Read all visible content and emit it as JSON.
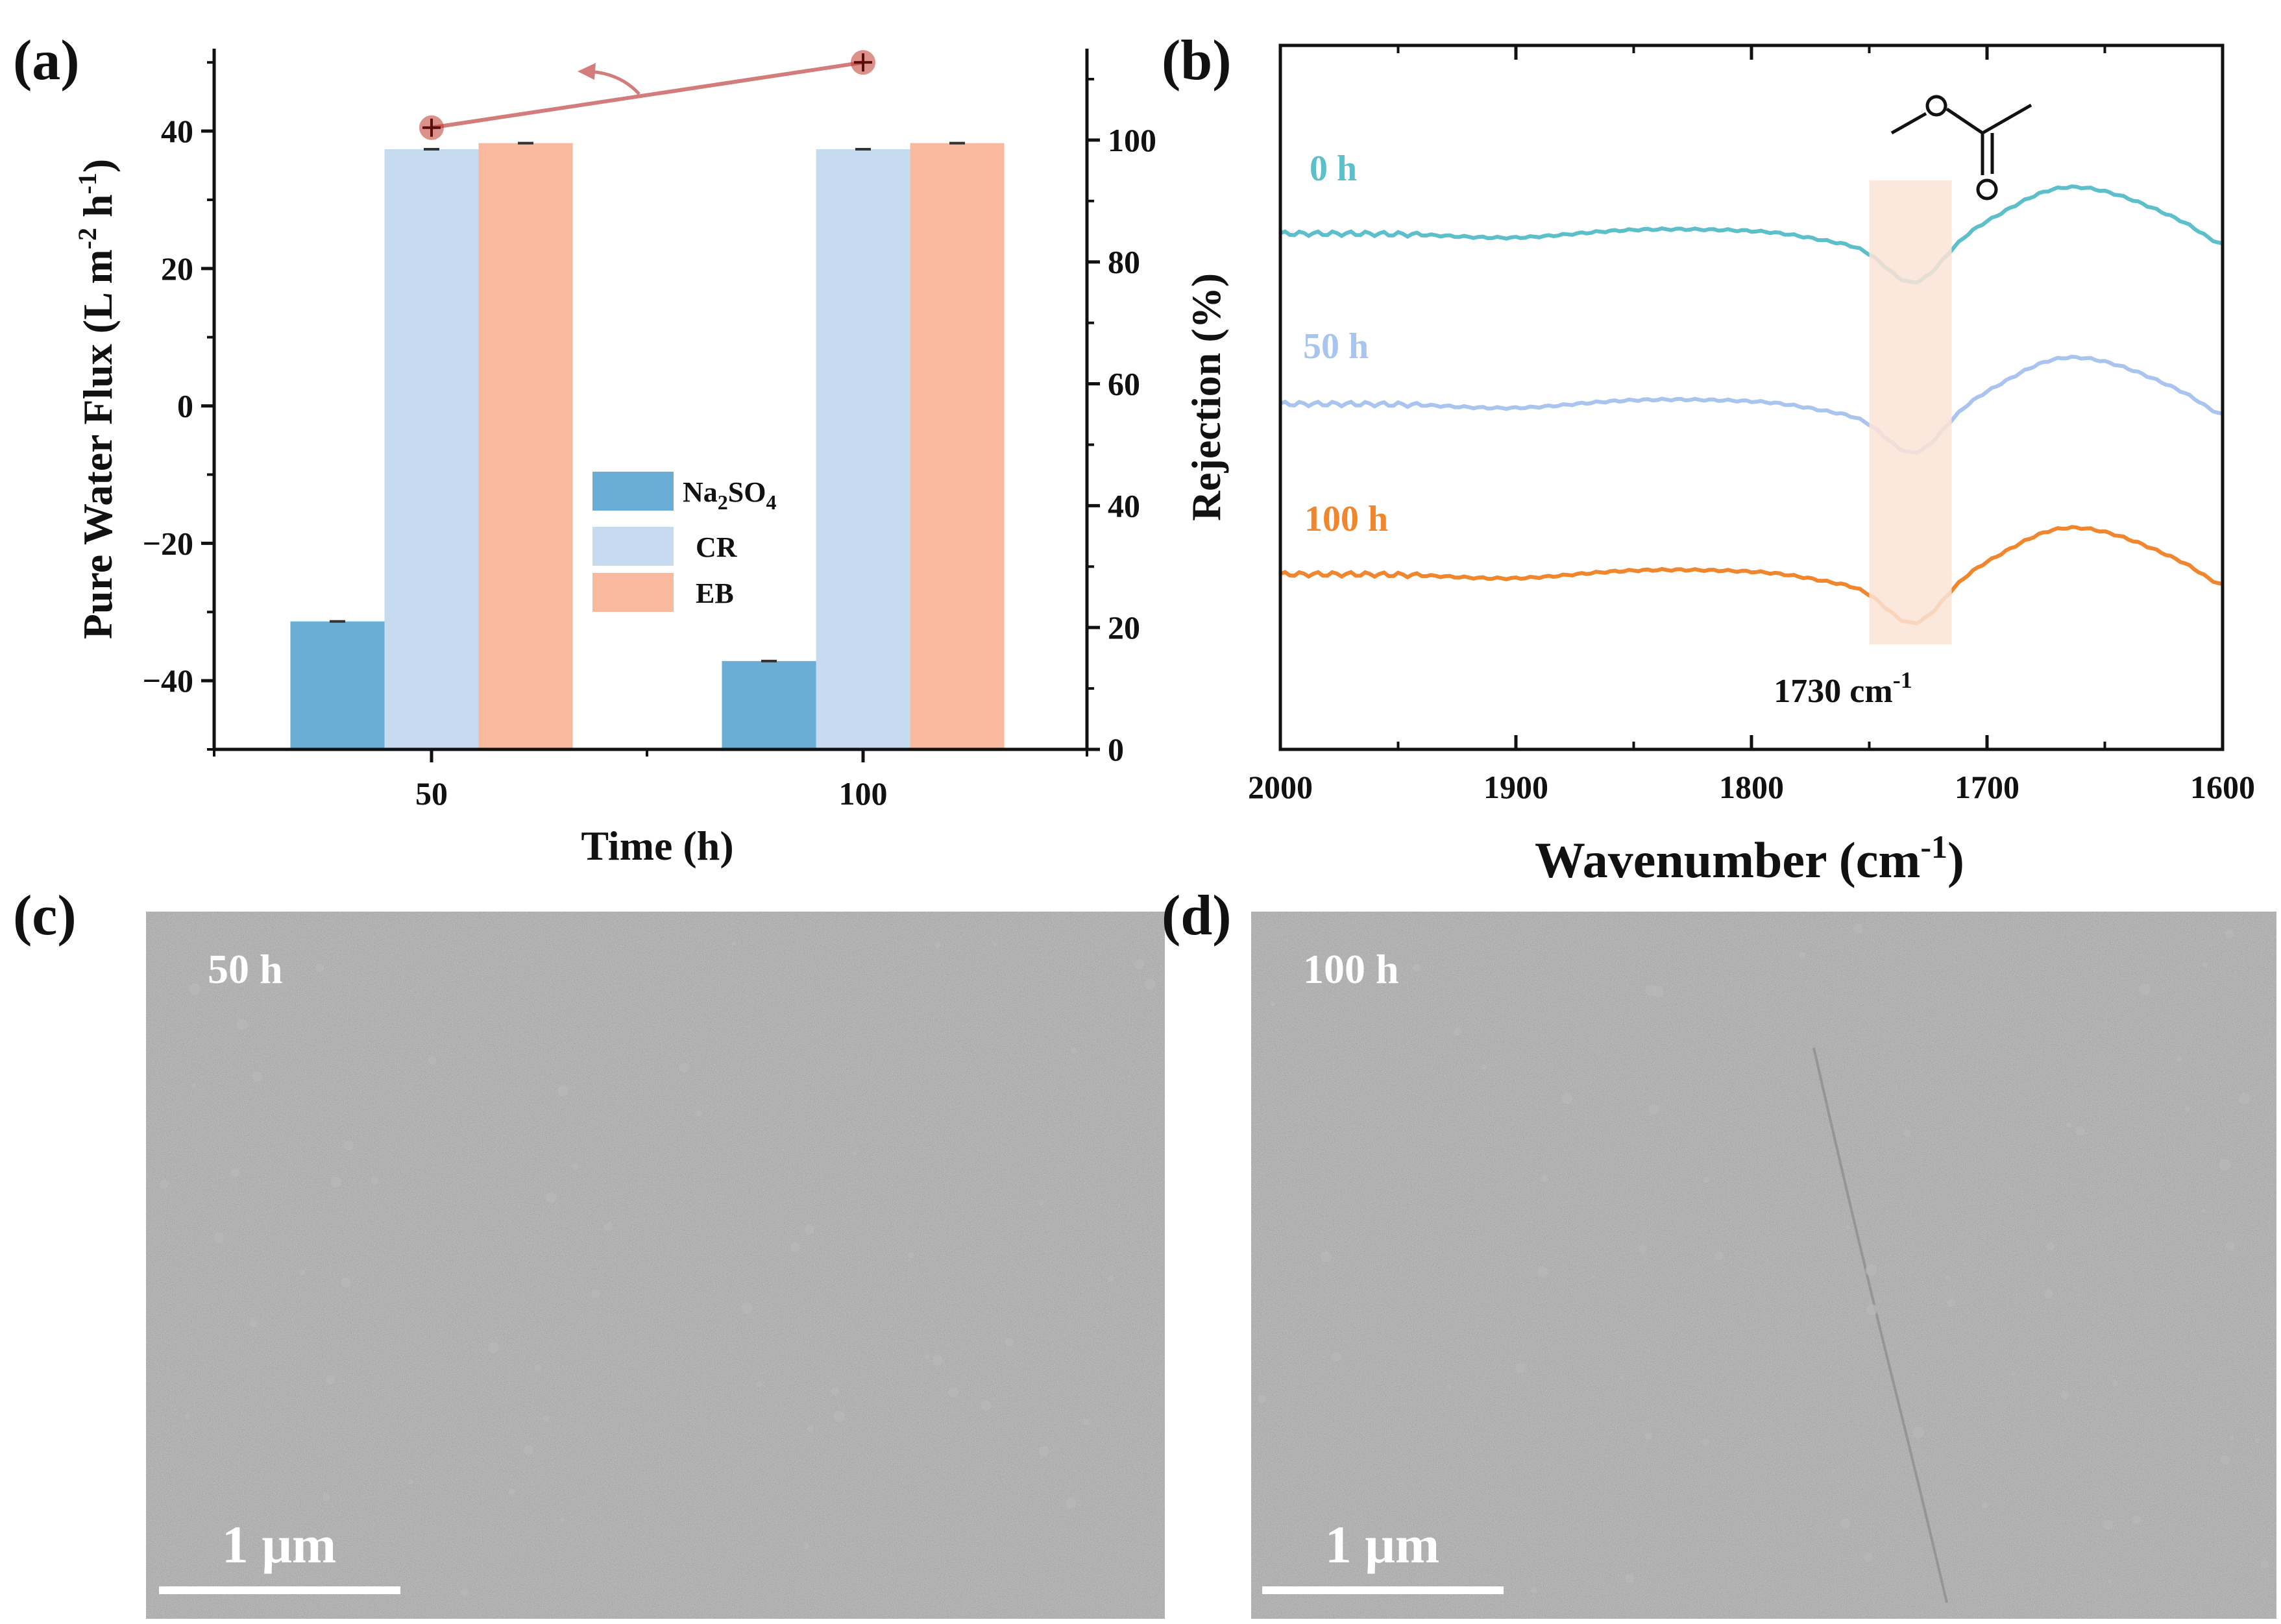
{
  "panels": {
    "a": "(a)",
    "b": "(b)",
    "c": "(c)",
    "d": "(d)"
  },
  "colors": {
    "na2so4": "#6aaed6",
    "cr": "#c6dbef",
    "eb": "#f9b99e",
    "flux_line": "#d47c7c",
    "flux_marker": "#c0392b",
    "curve_0h": "#5dbfc9",
    "curve_50h": "#a9c4ee",
    "curve_100h": "#f0862e",
    "highlight": "#fbe3d6",
    "sem_base": "#6e6e6e"
  },
  "chart_data": [
    {
      "id": "a",
      "type": "bar",
      "categories": [
        "50",
        "100"
      ],
      "xlabel": "Time (h)",
      "ylabel_left": "Pure Water Flux (L m-2 h-1)",
      "ylabel_left_parts": {
        "main": "Pure Water Flux (L m",
        "sup1": "-2",
        "mid": " h",
        "sup2": "-1",
        "end": ")"
      },
      "ylim_left": [
        -50,
        52
      ],
      "yticks_left": [
        -40,
        -20,
        0,
        20,
        40
      ],
      "ytick_labels_left": [
        "−40",
        "−20",
        "0",
        "20",
        "40"
      ],
      "ylim_right": [
        0,
        115
      ],
      "yticks_right": [
        0,
        20,
        40,
        60,
        80,
        100
      ],
      "series": [
        {
          "name": "Na2SO4",
          "label_main": "Na",
          "label_sub1": "2",
          "label_mid": "SO",
          "label_sub2": "4",
          "axis": "right",
          "values": [
            21,
            14.5
          ]
        },
        {
          "name": "CR",
          "axis": "right",
          "values": [
            98.5,
            98.5
          ]
        },
        {
          "name": "EB",
          "axis": "right",
          "values": [
            99.5,
            99.5
          ]
        }
      ],
      "flux": {
        "name": "Pure Water Flux",
        "axis": "left",
        "values": [
          40.5,
          50
        ]
      }
    },
    {
      "id": "b",
      "type": "line",
      "xlabel": "Wavenumber (cm-1)",
      "xlabel_parts": {
        "main": "Wavenumber (cm",
        "sup": "-1",
        "end": ")"
      },
      "ylabel": "Rejection (%)",
      "xlim": [
        2000,
        1600
      ],
      "xticks": [
        2000,
        1900,
        1800,
        1700,
        1600
      ],
      "series": [
        {
          "name": "0 h",
          "offset": 3.0
        },
        {
          "name": "50 h",
          "offset": 1.5
        },
        {
          "name": "100 h",
          "offset": 0.0
        }
      ],
      "highlight_band": [
        1750,
        1715
      ],
      "annotation_main": "1730 cm",
      "annotation_sup": "-1"
    }
  ],
  "sem": {
    "c": {
      "label": "50 h",
      "scale": "1 μm"
    },
    "d": {
      "label": "100 h",
      "scale": "1 μm"
    }
  }
}
